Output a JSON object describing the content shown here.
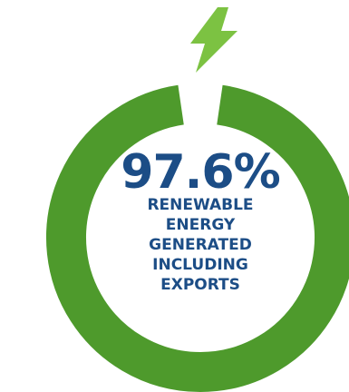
{
  "infographic": {
    "value_text": "97.6%",
    "value_fraction": 0.976,
    "caption_lines": [
      "RENEWABLE",
      "ENERGY",
      "GENERATED",
      "INCLUDING",
      "EXPORTS"
    ],
    "colors": {
      "ring": "#4e9a2c",
      "bolt": "#7cc242",
      "text": "#1c4d86"
    },
    "icon": "lightning-bolt-icon"
  }
}
